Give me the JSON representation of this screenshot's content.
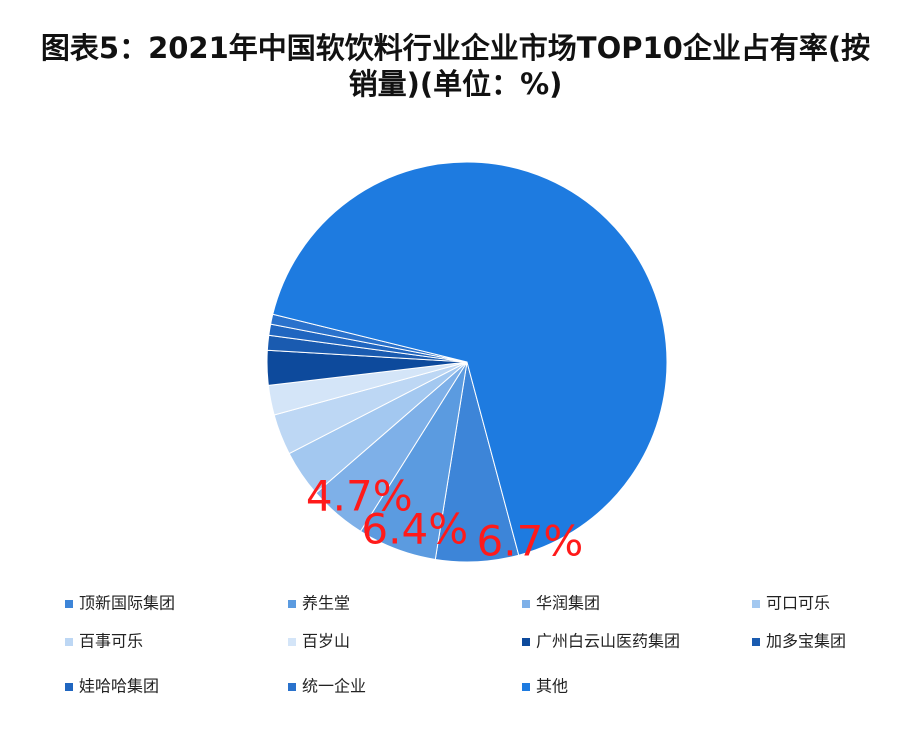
{
  "chart_data": {
    "type": "pie",
    "title": "图表5：2021年中国软饮料行业企业市场TOP10企业占有率(按销量)(单位：%)",
    "categories": [
      "顶新国际集团",
      "养生堂",
      "华润集团",
      "可口可乐",
      "百事可乐",
      "百岁山",
      "广州白云山医药集团",
      "加多宝集团",
      "娃哈哈集团",
      "统一企业",
      "其他"
    ],
    "values": [
      6.7,
      6.4,
      4.7,
      3.8,
      3.3,
      2.4,
      2.8,
      1.2,
      0.9,
      0.8,
      67.0
    ],
    "value_labels": [
      "6.7%",
      "6.4%",
      "4.7%",
      null,
      null,
      null,
      null,
      null,
      null,
      null,
      null
    ],
    "colors": [
      "#3d85d8",
      "#5b9be0",
      "#7eb0e8",
      "#a3c8f0",
      "#bdd7f4",
      "#d4e5f8",
      "#0d4a9c",
      "#1a5bb0",
      "#2066c0",
      "#2a72cc",
      "#1e7be0"
    ]
  }
}
